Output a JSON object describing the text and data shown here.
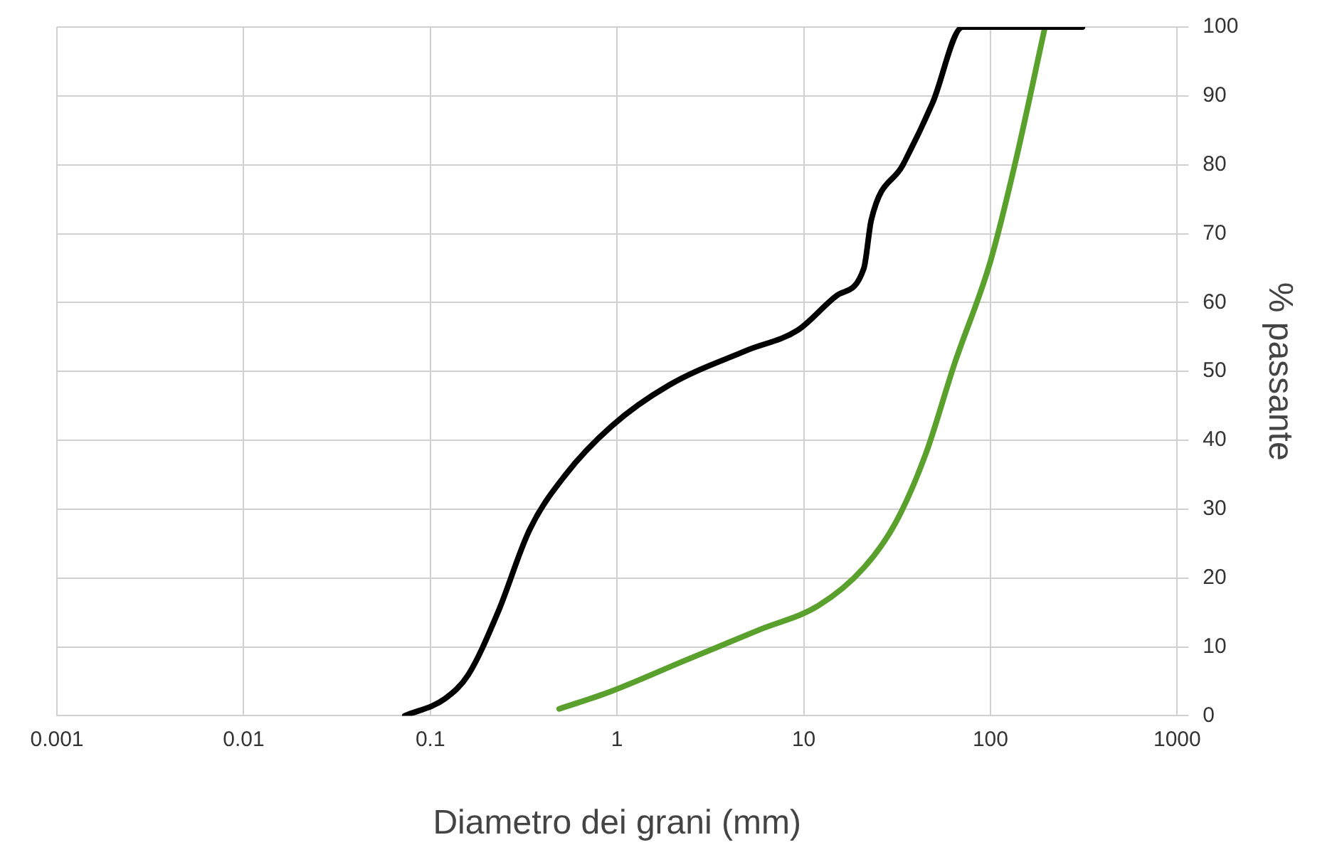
{
  "chart_data": {
    "type": "line",
    "xlabel": "Diametro dei grani (mm)",
    "y2label": "% passante",
    "log": "x",
    "grid": true,
    "legend": false,
    "marker": "none",
    "line_style": "solid",
    "xlim": [
      0.001,
      1000
    ],
    "xticks": [
      0.001,
      0.01,
      0.1,
      1,
      10,
      100,
      1000
    ],
    "y2lim": [
      0,
      100
    ],
    "y2ticks": [
      0,
      10,
      20,
      30,
      40,
      50,
      60,
      70,
      80,
      90,
      100
    ],
    "series": [
      {
        "color": "#000000",
        "axis": "y2",
        "x": [
          0.073,
          0.12,
          0.16,
          0.23,
          0.34,
          0.53,
          0.93,
          1.9,
          4.9,
          9.3,
          15,
          21,
          23,
          34,
          49,
          71,
          311
        ],
        "values": [
          0,
          2.5,
          6,
          15,
          27,
          35,
          42,
          48,
          53,
          56,
          61,
          65,
          72,
          80,
          89,
          100,
          100
        ]
      },
      {
        "color": "#5aa02c",
        "axis": "y2",
        "x": [
          0.49,
          0.92,
          2.3,
          5.8,
          12,
          21,
          31,
          45,
          64,
          100,
          135,
          196
        ],
        "values": [
          1,
          3.5,
          8,
          12.5,
          16,
          21.5,
          28,
          38,
          51,
          66,
          80,
          100
        ]
      }
    ]
  }
}
